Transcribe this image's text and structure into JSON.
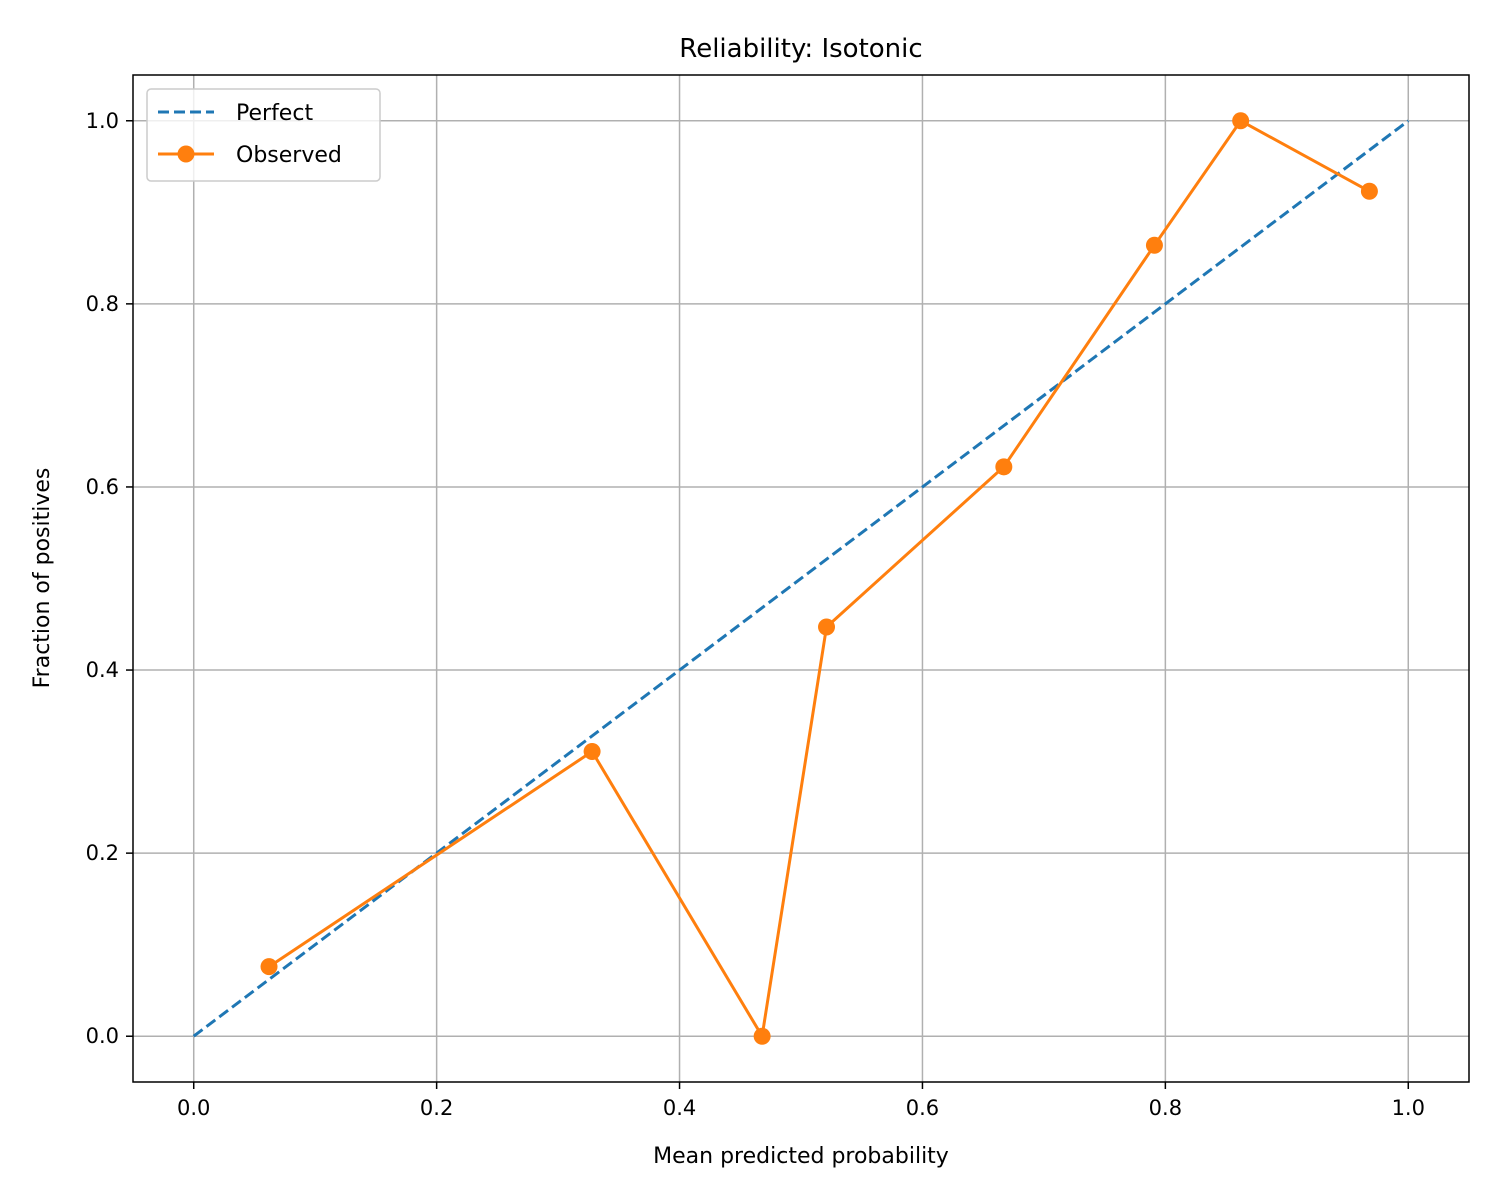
{
  "chart_data": {
    "type": "line",
    "title": "Reliability: Isotonic",
    "xlabel": "Mean predicted probability",
    "ylabel": "Fraction of positives",
    "xlim": [
      -0.05,
      1.05
    ],
    "ylim": [
      -0.05,
      1.05
    ],
    "xticks": [
      0.0,
      0.2,
      0.4,
      0.6,
      0.8,
      1.0
    ],
    "xtick_labels": [
      "0.0",
      "0.2",
      "0.4",
      "0.6",
      "0.8",
      "1.0"
    ],
    "yticks": [
      0.0,
      0.2,
      0.4,
      0.6,
      0.8,
      1.0
    ],
    "ytick_labels": [
      "0.0",
      "0.2",
      "0.4",
      "0.6",
      "0.8",
      "1.0"
    ],
    "grid": true,
    "legend_position": "top-left",
    "series": [
      {
        "name": "Perfect",
        "style": "dashed",
        "marker": "none",
        "color": "#1f77b4",
        "x": [
          0.0,
          1.0
        ],
        "y": [
          0.0,
          1.0
        ]
      },
      {
        "name": "Observed",
        "style": "solid",
        "marker": "circle",
        "color": "#ff7f0e",
        "x": [
          0.062,
          0.328,
          0.468,
          0.521,
          0.667,
          0.791,
          0.862,
          0.968
        ],
        "y": [
          0.076,
          0.311,
          0.0,
          0.447,
          0.622,
          0.864,
          1.0,
          0.923
        ]
      }
    ]
  }
}
